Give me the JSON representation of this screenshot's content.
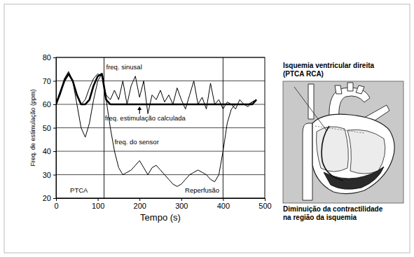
{
  "chart_data": {
    "type": "line",
    "x_label": "Tempo (s)",
    "y_label": "Freq. de estimulação (ppm)",
    "x": [
      0,
      10,
      20,
      30,
      40,
      50,
      60,
      70,
      80,
      90,
      100,
      110,
      120,
      130,
      140,
      150,
      160,
      170,
      180,
      190,
      200,
      210,
      220,
      230,
      240,
      250,
      260,
      270,
      280,
      290,
      300,
      310,
      320,
      330,
      340,
      350,
      360,
      370,
      380,
      390,
      400,
      410,
      420,
      430,
      440,
      450,
      460,
      470,
      480
    ],
    "series": [
      {
        "name": "freq. sinusal",
        "color": "#000000",
        "line_style": "solid",
        "values": [
          60,
          65,
          71,
          74,
          70,
          64,
          60,
          62,
          67,
          71,
          73,
          72,
          64,
          62,
          66,
          62,
          70,
          60,
          68,
          72,
          63,
          70,
          56,
          64,
          62,
          66,
          61,
          64,
          60,
          67,
          62,
          58,
          64,
          70,
          60,
          63,
          58,
          69,
          60,
          62,
          58,
          61,
          60,
          58,
          62,
          60,
          59,
          61,
          62
        ]
      },
      {
        "name": "freq. estimulação calculada",
        "color": "#000000",
        "line_style": "thick",
        "values": [
          60,
          65,
          70,
          73,
          70,
          64,
          60,
          60,
          62,
          68,
          72,
          73,
          62,
          60,
          60,
          60,
          60,
          60,
          60,
          60,
          60,
          60,
          60,
          60,
          60,
          60,
          60,
          60,
          60,
          60,
          60,
          60,
          60,
          60,
          60,
          60,
          60,
          60,
          60,
          60,
          60,
          60,
          60,
          60,
          60,
          60,
          60,
          60,
          62
        ]
      },
      {
        "name": "freq. do sensor",
        "color": "#000000",
        "line_style": "solid",
        "values": [
          60,
          64,
          70,
          73,
          70,
          60,
          50,
          46,
          52,
          62,
          70,
          73,
          62,
          50,
          40,
          33,
          30,
          31,
          32,
          34,
          36,
          33,
          30,
          33,
          34,
          32,
          30,
          28,
          26,
          25,
          26,
          28,
          30,
          31,
          32,
          31,
          30,
          28,
          27,
          30,
          40,
          52,
          58,
          60,
          60,
          60,
          60,
          61,
          62
        ]
      }
    ],
    "xlim": [
      0,
      500
    ],
    "xticks": [
      0,
      100,
      200,
      300,
      400,
      500
    ],
    "ylim": [
      20,
      80
    ],
    "yticks": [
      20,
      30,
      40,
      50,
      60,
      70,
      80
    ],
    "grid": true,
    "vlines": [
      115,
      400
    ],
    "annotations": [
      {
        "text": "freq. sinusal",
        "x": 120,
        "y": 75
      },
      {
        "text": "freq. estimulação calculada",
        "x": 117,
        "y": 53
      },
      {
        "text": "freq. do sensor",
        "x": 140,
        "y": 43
      },
      {
        "text": "PTCA",
        "x": 55,
        "y": 22.5
      },
      {
        "text": "Reperfusão",
        "x": 350,
        "y": 22.5
      }
    ]
  },
  "diagram": {
    "title": [
      "Isquemia ventricular direita",
      "(PTCA RCA)"
    ],
    "caption": [
      "Diminuição da contractilidade",
      "na região da isquemia"
    ]
  }
}
